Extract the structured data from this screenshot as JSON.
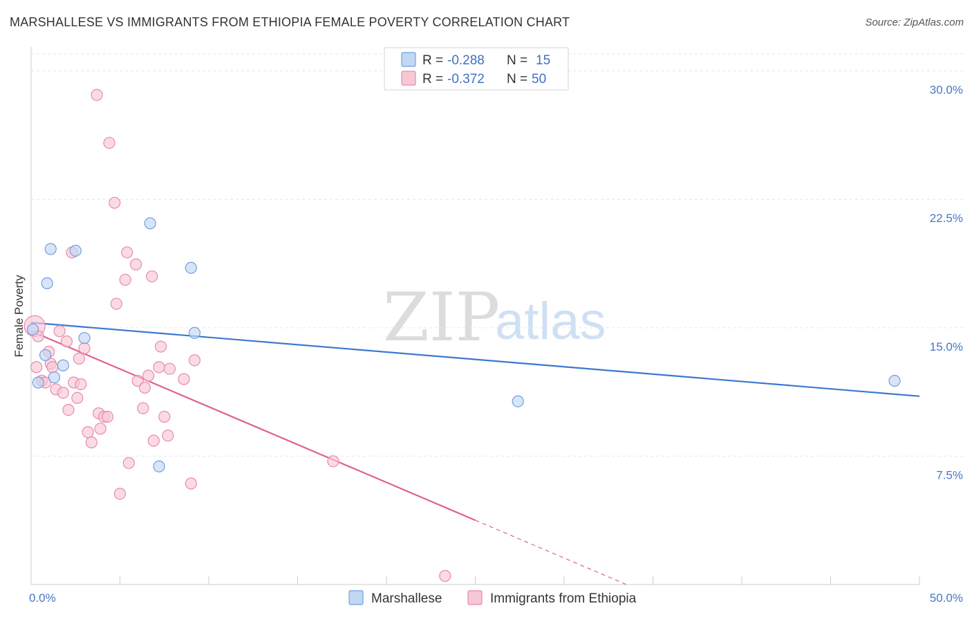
{
  "title": "MARSHALLESE VS IMMIGRANTS FROM ETHIOPIA FEMALE POVERTY CORRELATION CHART",
  "source": "Source: ZipAtlas.com",
  "watermark": {
    "zip": "ZIP",
    "atlas": "atlas"
  },
  "chart_data": {
    "type": "scatter",
    "ylabel": "Female Poverty",
    "xlim": [
      0,
      50
    ],
    "ylim": [
      0,
      31.4
    ],
    "x_tick_labels": [
      {
        "value": 0,
        "label": "0.0%"
      },
      {
        "value": 50,
        "label": "50.0%"
      }
    ],
    "x_minor_ticks": [
      0,
      5,
      10,
      15,
      20,
      25,
      30,
      35,
      40,
      45,
      50
    ],
    "y_ticks": [
      {
        "value": 7.5,
        "label": "7.5%"
      },
      {
        "value": 15,
        "label": "15.0%"
      },
      {
        "value": 22.5,
        "label": "22.5%"
      },
      {
        "value": 30,
        "label": "30.0%"
      }
    ],
    "legend": [
      {
        "r_label": "R = ",
        "r_value": "-0.288",
        "n_label": "N = ",
        "n_value": "15"
      },
      {
        "r_label": "R = ",
        "r_value": "-0.372",
        "n_label": "N = ",
        "n_value": "50"
      }
    ],
    "series": [
      {
        "name": "Marshallese",
        "color": "#6f9fe0",
        "fill": "#c2d7f3",
        "line_color": "#3a78d0",
        "trend": {
          "x0": 0,
          "y0": 15.3,
          "x1": 50,
          "y1": 11.0,
          "solid_until": 50
        },
        "points": [
          [
            0.1,
            14.9
          ],
          [
            0.4,
            11.8
          ],
          [
            0.8,
            13.4
          ],
          [
            0.9,
            17.6
          ],
          [
            1.1,
            19.6
          ],
          [
            1.3,
            12.1
          ],
          [
            1.8,
            12.8
          ],
          [
            2.5,
            19.5
          ],
          [
            3.0,
            14.4
          ],
          [
            6.7,
            21.1
          ],
          [
            7.2,
            6.9
          ],
          [
            9.0,
            18.5
          ],
          [
            9.2,
            14.7
          ],
          [
            27.4,
            10.7
          ],
          [
            48.6,
            11.9
          ]
        ]
      },
      {
        "name": "Immigrants from Ethiopia",
        "color": "#e88aaa",
        "fill": "#f7c7d6",
        "line_color": "#e0608e",
        "trend": {
          "x0": 0,
          "y0": 14.8,
          "x1": 33.5,
          "y1": 0,
          "solid_until": 25
        },
        "points": [
          [
            0.2,
            15.1
          ],
          [
            0.3,
            12.7
          ],
          [
            0.4,
            14.5
          ],
          [
            0.6,
            11.9
          ],
          [
            0.8,
            11.8
          ],
          [
            1.0,
            13.6
          ],
          [
            1.1,
            12.9
          ],
          [
            1.2,
            12.7
          ],
          [
            1.4,
            11.4
          ],
          [
            1.6,
            14.8
          ],
          [
            1.8,
            11.2
          ],
          [
            2.0,
            14.2
          ],
          [
            2.1,
            10.2
          ],
          [
            2.3,
            19.4
          ],
          [
            2.4,
            11.8
          ],
          [
            2.6,
            10.9
          ],
          [
            2.7,
            13.2
          ],
          [
            2.8,
            11.7
          ],
          [
            3.0,
            13.8
          ],
          [
            3.2,
            8.9
          ],
          [
            3.4,
            8.3
          ],
          [
            3.7,
            28.6
          ],
          [
            3.8,
            10.0
          ],
          [
            3.9,
            9.1
          ],
          [
            4.1,
            9.8
          ],
          [
            4.3,
            9.8
          ],
          [
            4.4,
            25.8
          ],
          [
            4.7,
            22.3
          ],
          [
            4.8,
            16.4
          ],
          [
            5.0,
            5.3
          ],
          [
            5.3,
            17.8
          ],
          [
            5.4,
            19.4
          ],
          [
            5.5,
            7.1
          ],
          [
            5.9,
            18.7
          ],
          [
            6.0,
            11.9
          ],
          [
            6.3,
            10.3
          ],
          [
            6.4,
            11.5
          ],
          [
            6.6,
            12.2
          ],
          [
            6.8,
            18.0
          ],
          [
            6.9,
            8.4
          ],
          [
            7.2,
            12.7
          ],
          [
            7.3,
            13.9
          ],
          [
            7.5,
            9.8
          ],
          [
            7.7,
            8.7
          ],
          [
            7.8,
            12.6
          ],
          [
            8.6,
            12.0
          ],
          [
            9.0,
            5.9
          ],
          [
            9.2,
            13.1
          ],
          [
            17.0,
            7.2
          ],
          [
            23.3,
            0.5
          ]
        ]
      }
    ]
  }
}
